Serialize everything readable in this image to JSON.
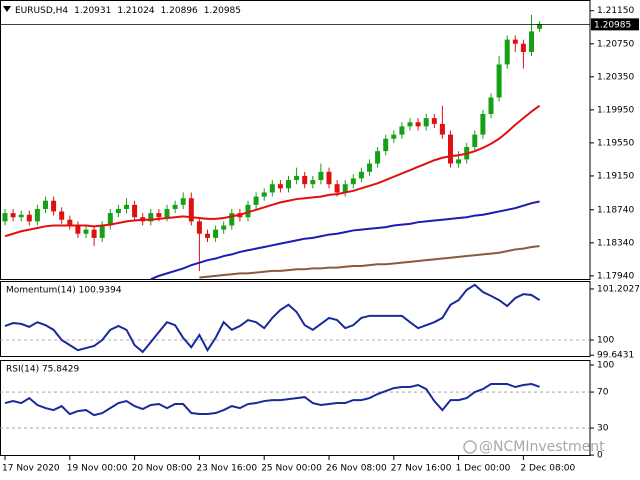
{
  "chart_data": [
    {
      "type": "candlestick",
      "title": "EURUSD,H4",
      "header_values": [
        1.20931,
        1.21024,
        1.20896,
        1.20985
      ],
      "categories": [
        "17 Nov 2020",
        null,
        null,
        null,
        null,
        null,
        null,
        null,
        "19 Nov 00:00",
        null,
        null,
        null,
        null,
        null,
        null,
        null,
        "20 Nov 08:00",
        null,
        null,
        null,
        null,
        null,
        null,
        null,
        "23 Nov 16:00",
        null,
        null,
        null,
        null,
        null,
        null,
        null,
        "25 Nov 00:00",
        null,
        null,
        null,
        null,
        null,
        null,
        null,
        "26 Nov 08:00",
        null,
        null,
        null,
        null,
        null,
        null,
        null,
        "27 Nov 16:00",
        null,
        null,
        null,
        null,
        null,
        null,
        null,
        "1 Dec 00:00",
        null,
        null,
        null,
        null,
        null,
        null,
        null,
        "2 Dec 08:00",
        null,
        null
      ],
      "open": [
        1.186,
        1.187,
        1.1865,
        1.1868,
        1.186,
        1.1875,
        1.1885,
        1.1872,
        1.1862,
        1.1855,
        1.1845,
        1.185,
        1.184,
        1.1855,
        1.187,
        1.1875,
        1.188,
        1.1865,
        1.186,
        1.187,
        1.1865,
        1.1875,
        1.188,
        1.1888,
        1.186,
        1.1845,
        1.184,
        1.185,
        1.1855,
        1.187,
        1.1865,
        1.188,
        1.189,
        1.1895,
        1.1905,
        1.19,
        1.191,
        1.1915,
        1.1905,
        1.191,
        1.192,
        1.1905,
        1.1895,
        1.1905,
        1.1912,
        1.192,
        1.193,
        1.1945,
        1.196,
        1.1965,
        1.1975,
        1.198,
        1.1975,
        1.1985,
        1.1978,
        1.1965,
        1.193,
        1.1935,
        1.195,
        1.1965,
        1.199,
        1.201,
        1.205,
        1.208,
        1.2075,
        1.2065,
        1.20931
      ],
      "high": [
        1.1875,
        1.1875,
        1.1873,
        1.1873,
        1.188,
        1.189,
        1.189,
        1.1877,
        1.1867,
        1.186,
        1.1855,
        1.1855,
        1.186,
        1.1875,
        1.188,
        1.1888,
        1.1885,
        1.187,
        1.1875,
        1.1875,
        1.188,
        1.1885,
        1.1895,
        1.1895,
        1.1865,
        1.185,
        1.1855,
        1.186,
        1.1875,
        1.1875,
        1.1885,
        1.1895,
        1.19,
        1.191,
        1.191,
        1.1915,
        1.1925,
        1.192,
        1.1915,
        1.193,
        1.1925,
        1.191,
        1.191,
        1.1917,
        1.1925,
        1.1935,
        1.195,
        1.1965,
        1.197,
        1.198,
        1.1985,
        1.1985,
        1.199,
        1.199,
        1.2,
        1.197,
        1.1945,
        1.1955,
        1.197,
        1.1995,
        1.2015,
        1.206,
        1.2085,
        1.2085,
        1.208,
        1.211,
        1.21024
      ],
      "low": [
        1.1855,
        1.186,
        1.186,
        1.1855,
        1.1855,
        1.187,
        1.1867,
        1.1857,
        1.185,
        1.184,
        1.184,
        1.183,
        1.1835,
        1.185,
        1.1865,
        1.187,
        1.186,
        1.1855,
        1.1855,
        1.186,
        1.186,
        1.187,
        1.1875,
        1.1855,
        1.18,
        1.1835,
        1.1835,
        1.1845,
        1.185,
        1.186,
        1.186,
        1.1875,
        1.1885,
        1.189,
        1.1895,
        1.1895,
        1.1905,
        1.19,
        1.19,
        1.1905,
        1.19,
        1.189,
        1.189,
        1.19,
        1.1907,
        1.1915,
        1.1925,
        1.194,
        1.1955,
        1.196,
        1.197,
        1.197,
        1.197,
        1.1973,
        1.196,
        1.1925,
        1.1925,
        1.193,
        1.1945,
        1.196,
        1.1985,
        1.2005,
        1.2045,
        1.2065,
        1.2045,
        1.206,
        1.20896
      ],
      "close": [
        1.187,
        1.1865,
        1.1868,
        1.186,
        1.1875,
        1.1885,
        1.1872,
        1.1862,
        1.1855,
        1.1845,
        1.185,
        1.184,
        1.1855,
        1.187,
        1.1875,
        1.188,
        1.1865,
        1.186,
        1.187,
        1.1865,
        1.1875,
        1.188,
        1.1888,
        1.186,
        1.1845,
        1.184,
        1.185,
        1.1855,
        1.187,
        1.1865,
        1.188,
        1.189,
        1.1895,
        1.1905,
        1.19,
        1.191,
        1.1915,
        1.1905,
        1.191,
        1.192,
        1.1905,
        1.1895,
        1.1905,
        1.1912,
        1.192,
        1.193,
        1.1945,
        1.196,
        1.1965,
        1.1975,
        1.198,
        1.1975,
        1.1985,
        1.1978,
        1.1965,
        1.193,
        1.1935,
        1.195,
        1.1965,
        1.199,
        1.201,
        1.205,
        1.208,
        1.2075,
        1.2065,
        1.209,
        1.20985
      ],
      "up_color": "#16a016",
      "down_color": "#e01010",
      "series": [
        {
          "color": "#e01010",
          "values": [
            1.1842,
            1.1845,
            1.1848,
            1.185,
            1.1852,
            1.1854,
            1.1855,
            1.1855,
            1.1855,
            1.1855,
            1.1855,
            1.1854,
            1.1855,
            1.1856,
            1.1858,
            1.186,
            1.1861,
            1.1862,
            1.1862,
            1.1863,
            1.1864,
            1.1865,
            1.1866,
            1.1865,
            1.1864,
            1.1863,
            1.1863,
            1.1864,
            1.1866,
            1.1868,
            1.1871,
            1.1874,
            1.1877,
            1.188,
            1.1883,
            1.1885,
            1.1887,
            1.1888,
            1.1889,
            1.189,
            1.1892,
            1.1893,
            1.1895,
            1.1897,
            1.19,
            1.1903,
            1.1906,
            1.191,
            1.1914,
            1.1918,
            1.1922,
            1.1926,
            1.193,
            1.1934,
            1.1937,
            1.1939,
            1.194,
            1.1942,
            1.1945,
            1.1949,
            1.1954,
            1.196,
            1.1968,
            1.1977,
            1.1985,
            1.1993,
            1.2
          ]
        },
        {
          "color": "#1c1cb4",
          "values": [
            null,
            null,
            null,
            null,
            null,
            null,
            null,
            null,
            null,
            null,
            null,
            null,
            null,
            null,
            null,
            null,
            null,
            null,
            1.179,
            1.1794,
            1.1797,
            1.18,
            1.1803,
            1.1807,
            1.181,
            1.1813,
            1.1815,
            1.1818,
            1.182,
            1.1823,
            1.1825,
            1.1827,
            1.1829,
            1.1831,
            1.1833,
            1.1835,
            1.1837,
            1.1839,
            1.184,
            1.1842,
            1.1844,
            1.1845,
            1.1847,
            1.1849,
            1.185,
            1.1851,
            1.1852,
            1.1853,
            1.1855,
            1.1856,
            1.1857,
            1.1859,
            1.186,
            1.1861,
            1.1862,
            1.1863,
            1.1864,
            1.1865,
            1.1867,
            1.1868,
            1.187,
            1.1872,
            1.1874,
            1.1876,
            1.1879,
            1.1882,
            1.1884
          ]
        },
        {
          "color": "#8b5a3c",
          "values": [
            null,
            null,
            null,
            null,
            null,
            null,
            null,
            null,
            null,
            null,
            null,
            null,
            null,
            null,
            null,
            null,
            null,
            null,
            null,
            null,
            null,
            null,
            null,
            null,
            1.1792,
            1.1793,
            1.1794,
            1.1795,
            1.1796,
            1.1797,
            1.1797,
            1.1798,
            1.1799,
            1.18,
            1.18,
            1.1801,
            1.1802,
            1.1802,
            1.1803,
            1.1803,
            1.1804,
            1.1804,
            1.1805,
            1.1806,
            1.1806,
            1.1807,
            1.1808,
            1.1808,
            1.1809,
            1.181,
            1.1811,
            1.1812,
            1.1813,
            1.1814,
            1.1815,
            1.1816,
            1.1817,
            1.1818,
            1.1819,
            1.182,
            1.1821,
            1.1822,
            1.1824,
            1.1826,
            1.1827,
            1.1829,
            1.183
          ]
        }
      ],
      "last_price": 1.20985,
      "ylim": [
        1.1789,
        1.2128
      ],
      "yticks": [
        {
          "value": 1.2115,
          "label": "1.21150"
        },
        {
          "value": 1.2075,
          "label": "1.20750"
        },
        {
          "value": 1.2035,
          "label": "1.20350"
        },
        {
          "value": 1.1995,
          "label": "1.19950"
        },
        {
          "value": 1.1955,
          "label": "1.19550"
        },
        {
          "value": 1.1915,
          "label": "1.19150"
        },
        {
          "value": 1.1874,
          "label": "1.18740"
        },
        {
          "value": 1.1834,
          "label": "1.18340"
        },
        {
          "value": 1.1794,
          "label": "1.17940"
        }
      ]
    },
    {
      "type": "line",
      "title": "Momentum(14) 100.9394",
      "color": "#1a2a9a",
      "values": [
        100.33,
        100.4,
        100.38,
        100.31,
        100.42,
        100.35,
        100.24,
        100.0,
        99.88,
        99.76,
        99.81,
        99.86,
        100.0,
        100.24,
        100.33,
        100.24,
        99.88,
        99.72,
        99.95,
        100.19,
        100.42,
        100.35,
        100.05,
        99.83,
        100.12,
        99.76,
        100.05,
        100.42,
        100.24,
        100.33,
        100.47,
        100.42,
        100.28,
        100.52,
        100.71,
        100.83,
        100.66,
        100.35,
        100.24,
        100.38,
        100.52,
        100.47,
        100.28,
        100.35,
        100.52,
        100.57,
        100.57,
        100.57,
        100.57,
        100.57,
        100.42,
        100.28,
        100.35,
        100.42,
        100.52,
        100.83,
        100.94,
        101.18,
        101.3,
        101.13,
        101.04,
        100.94,
        100.8,
        100.99,
        101.08,
        101.06,
        100.9394
      ],
      "levels": [
        100
      ],
      "ylim": [
        99.6,
        101.39
      ],
      "yticks": [
        101.2027,
        100,
        99.6431
      ]
    },
    {
      "type": "line",
      "title": "RSI(14) 75.8429",
      "color": "#1a2a9a",
      "values": [
        57.8,
        60,
        57.8,
        63.3,
        55.6,
        52.2,
        50,
        54.4,
        45.6,
        48.9,
        50,
        44.4,
        46.7,
        52.2,
        57.8,
        60,
        54.4,
        51.1,
        55.6,
        56.7,
        52.2,
        56.7,
        56.7,
        46.7,
        45.6,
        45.6,
        46.7,
        50,
        54.4,
        52.2,
        56.7,
        57.8,
        60,
        61.1,
        61.1,
        62.2,
        63.3,
        64.4,
        57.8,
        55.6,
        56.7,
        57.8,
        57.8,
        61.1,
        61.1,
        63.3,
        67.8,
        71.1,
        74.4,
        75.6,
        75.6,
        77.8,
        73.3,
        60,
        50,
        61.1,
        61.1,
        63.3,
        70,
        73.3,
        78.9,
        78.9,
        78.9,
        75.6,
        77.8,
        78.9,
        75.8429
      ],
      "levels": [
        70,
        30
      ],
      "ylim": [
        -1,
        105.6
      ],
      "yticks": [
        100,
        70,
        30,
        0
      ],
      "watermark": "@NCMInvestment"
    }
  ]
}
